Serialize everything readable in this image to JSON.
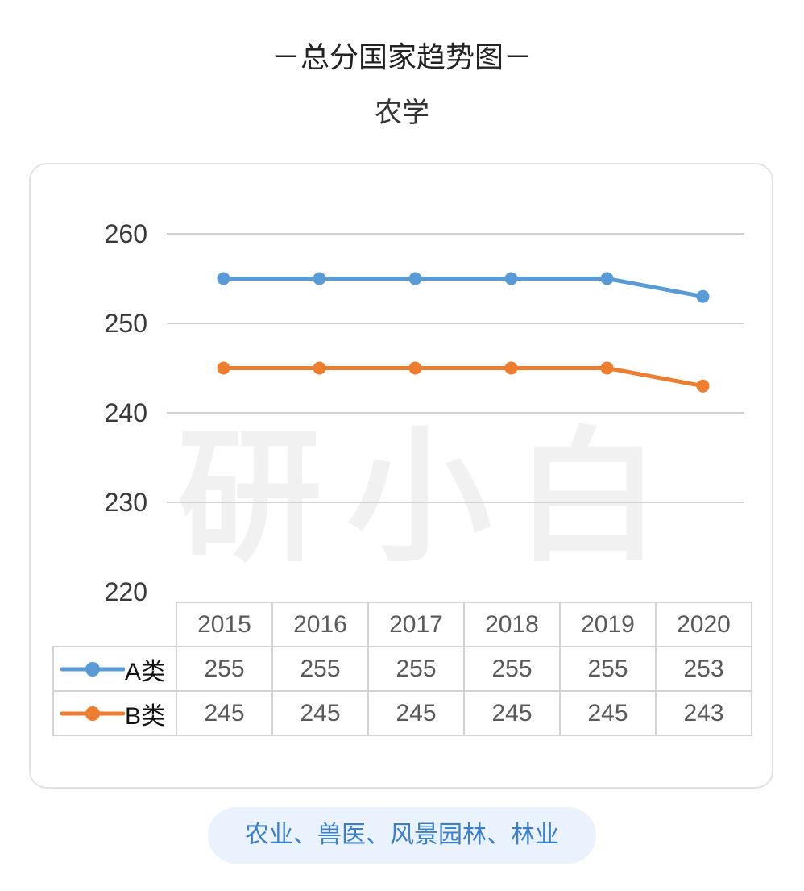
{
  "header": {
    "title": "－总分国家趋势图－",
    "subtitle": "农学"
  },
  "watermark_text": "研小白",
  "footer": {
    "label": "农业、兽医、风景园林、林业"
  },
  "colors": {
    "series_a": "#5b9bd5",
    "series_b": "#ed7d31",
    "gridline": "#d0d0d0",
    "footer_bg": "#eaf3fd",
    "footer_text": "#3d7fc9"
  },
  "chart_data": {
    "type": "line",
    "title": "－总分国家趋势图－",
    "subtitle": "农学",
    "categories": [
      "2015",
      "2016",
      "2017",
      "2018",
      "2019",
      "2020"
    ],
    "yticks": [
      "260",
      "250",
      "240",
      "230",
      "220"
    ],
    "ylim": [
      220,
      260
    ],
    "grid": true,
    "legend": "data-table",
    "series": [
      {
        "name": "A类",
        "values": [
          255,
          255,
          255,
          255,
          255,
          253
        ],
        "color": "#5b9bd5"
      },
      {
        "name": "B类",
        "values": [
          245,
          245,
          245,
          245,
          245,
          243
        ],
        "color": "#ed7d31"
      }
    ]
  }
}
